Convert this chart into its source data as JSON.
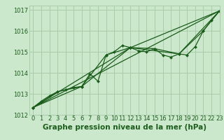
{
  "background_color": "#cce8cc",
  "grid_color": "#aaccaa",
  "line_color": "#1a5c1a",
  "xlabel": "Graphe pression niveau de la mer (hPa)",
  "xlabel_fontsize": 7.5,
  "tick_fontsize": 6,
  "xlim": [
    -0.5,
    23
  ],
  "ylim": [
    1012,
    1017.2
  ],
  "yticks": [
    1012,
    1013,
    1014,
    1015,
    1016,
    1017
  ],
  "xticks": [
    0,
    1,
    2,
    3,
    4,
    5,
    6,
    7,
    8,
    9,
    10,
    11,
    12,
    13,
    14,
    15,
    16,
    17,
    18,
    19,
    20,
    21,
    22,
    23
  ],
  "series": [
    {
      "x": [
        0,
        1,
        2,
        3,
        4,
        5,
        6,
        7,
        8,
        9,
        10,
        11,
        12,
        13,
        14,
        15,
        16,
        17,
        18,
        19,
        20,
        21,
        22,
        23
      ],
      "y": [
        1012.35,
        1012.65,
        1012.9,
        1013.1,
        1013.2,
        1013.3,
        1013.35,
        1013.95,
        1013.6,
        1014.85,
        1015.0,
        1015.3,
        1015.2,
        1015.05,
        1015.0,
        1015.15,
        1014.85,
        1014.75,
        1014.9,
        1014.85,
        1015.25,
        1016.0,
        1016.5,
        1016.95
      ],
      "marker": "D",
      "markersize": 2.0,
      "linewidth": 0.9
    },
    {
      "x": [
        0,
        3,
        6,
        9,
        12,
        15,
        18,
        21,
        23
      ],
      "y": [
        1012.35,
        1013.1,
        1013.35,
        1014.85,
        1015.2,
        1015.15,
        1014.9,
        1016.0,
        1016.95
      ],
      "marker": "D",
      "markersize": 2.0,
      "linewidth": 0.9
    },
    {
      "x": [
        0,
        6,
        12,
        18,
        23
      ],
      "y": [
        1012.35,
        1013.35,
        1015.2,
        1014.9,
        1016.95
      ],
      "marker": "D",
      "markersize": 2.0,
      "linewidth": 0.9
    },
    {
      "x": [
        0,
        12,
        23
      ],
      "y": [
        1012.35,
        1015.2,
        1016.95
      ],
      "marker": "D",
      "markersize": 2.0,
      "linewidth": 0.9
    },
    {
      "x": [
        0,
        23
      ],
      "y": [
        1012.35,
        1016.95
      ],
      "marker": "D",
      "markersize": 2.0,
      "linewidth": 0.9
    }
  ]
}
